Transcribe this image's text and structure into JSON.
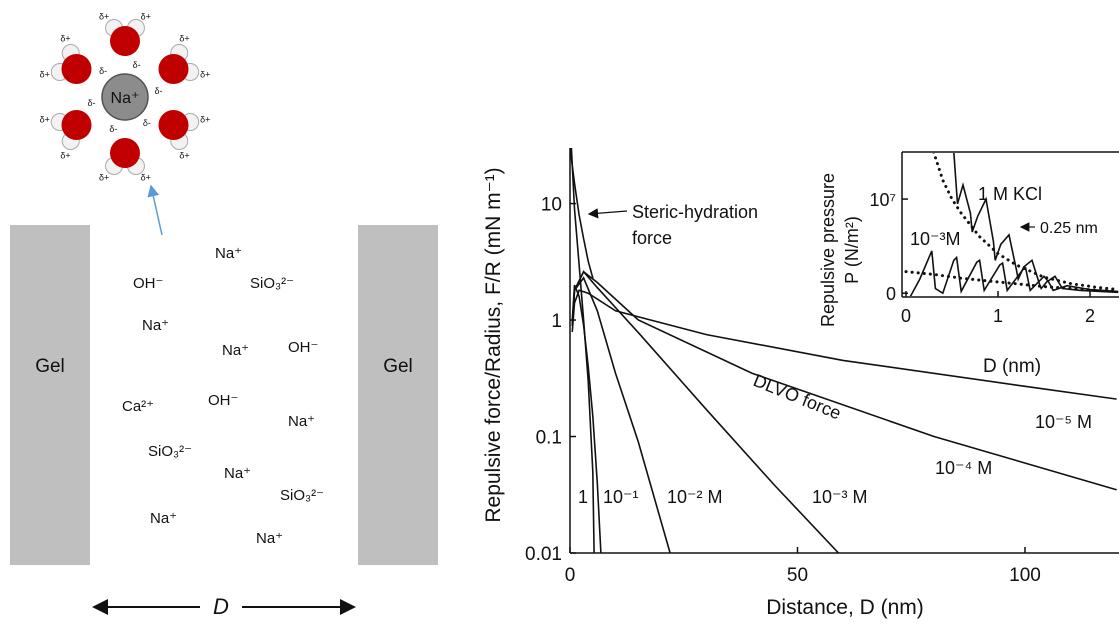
{
  "diagram": {
    "center_ion": "Na⁺",
    "deltas": [
      "δ+",
      "δ+",
      "δ-",
      "δ+",
      "δ+",
      "δ-",
      "δ+",
      "δ+",
      "δ-",
      "δ+",
      "δ+",
      "δ-",
      "δ+",
      "δ+",
      "δ-",
      "δ+",
      "δ+",
      "δ-"
    ],
    "gel_left": "Gel",
    "gel_right": "Gel",
    "ions": [
      "Na⁺",
      "OH⁻",
      "SiO₃²⁻",
      "Na⁺",
      "Na⁺",
      "OH⁻",
      "Ca²⁺",
      "OH⁻",
      "Na⁺",
      "SiO₃²⁻",
      "Na⁺",
      "SiO₃²⁻",
      "Na⁺",
      "Na⁺"
    ],
    "distance": "D"
  },
  "chart_data": [
    {
      "type": "line",
      "yscale": "log",
      "x_label": "Distance, D (nm)",
      "y_label": "Repulsive force/Radius, F/R (mN m⁻¹)",
      "xlim": [
        0,
        120
      ],
      "ylim": [
        0.01,
        30
      ],
      "xticks": [
        0,
        50,
        100
      ],
      "yticks": [
        0.01,
        0.1,
        1,
        10
      ],
      "annotations": [
        "Steric-hydration",
        "force",
        "DLVO force"
      ],
      "series": [
        {
          "name": "1",
          "color": "#111111",
          "x": [
            0.3,
            1,
            2,
            3,
            4,
            5,
            5.3
          ],
          "values": [
            30,
            9,
            3,
            1,
            0.3,
            0.05,
            0.01
          ]
        },
        {
          "name": "10⁻¹",
          "color": "#111111",
          "x": [
            0.5,
            1,
            2,
            3,
            4,
            5,
            6,
            6.8
          ],
          "values": [
            1,
            2,
            1.6,
            0.9,
            0.4,
            0.15,
            0.04,
            0.01
          ]
        },
        {
          "name": "10⁻² M",
          "color": "#111111",
          "x": [
            0.5,
            1,
            3,
            6,
            10,
            15,
            22
          ],
          "values": [
            0.9,
            1.8,
            2.3,
            1.2,
            0.35,
            0.09,
            0.01
          ]
        },
        {
          "name": "10⁻³ M",
          "color": "#111111",
          "x": [
            0.5,
            1,
            3,
            6,
            15,
            30,
            45,
            59
          ],
          "values": [
            0.9,
            1.8,
            2.6,
            1.9,
            0.78,
            0.17,
            0.038,
            0.01
          ]
        },
        {
          "name": "10⁻⁴ M",
          "color": "#111111",
          "x": [
            0.5,
            1,
            3,
            6,
            15,
            40,
            80,
            120
          ],
          "values": [
            0.9,
            1.8,
            2.6,
            2.1,
            1.0,
            0.35,
            0.1,
            0.035
          ]
        },
        {
          "name": "10⁻⁵ M",
          "color": "#111111",
          "x": [
            0.5,
            1,
            2,
            4,
            10,
            30,
            60,
            100,
            120
          ],
          "values": [
            0.8,
            1.4,
            1.8,
            1.7,
            1.2,
            0.75,
            0.45,
            0.27,
            0.21
          ]
        },
        {
          "color": "#111111",
          "x": [
            0,
            1,
            2,
            3,
            4,
            5
          ],
          "values": [
            30,
            15,
            8,
            5,
            3.2,
            2.3
          ]
        }
      ]
    },
    {
      "type": "line",
      "x_label": "D (nm)",
      "y_label": [
        "Repulsive pressure",
        "P (N/m²)"
      ],
      "xlim": [
        0,
        2.3
      ],
      "ylim": [
        -400000,
        15000000
      ],
      "xticks": [
        0,
        1,
        2
      ],
      "yticks": [
        0,
        {
          "value": 10000000,
          "label": "10⁷"
        }
      ],
      "annotations": [
        "1 M KCl",
        "10⁻³M",
        "0.25 nm"
      ],
      "series": [
        {
          "color": "#111111",
          "line_style": "solid",
          "x": [
            0.52,
            0.56,
            0.62,
            0.7,
            0.72,
            0.78,
            0.87,
            0.95,
            0.97,
            1.03,
            1.12,
            1.2,
            1.22,
            1.28,
            1.37,
            1.45,
            1.47,
            1.53,
            1.62,
            1.7,
            1.9,
            2.3
          ],
          "values": [
            15000000,
            9500000,
            11500000,
            8500000,
            6500000,
            8200000,
            10000000,
            5500000,
            3500000,
            5200000,
            6200000,
            2500000,
            1500000,
            2800000,
            3500000,
            1000000,
            500000,
            1200000,
            1800000,
            500000,
            300000,
            100000
          ]
        },
        {
          "color": "#111111",
          "line_style": "solid",
          "x": [
            0.05,
            0.15,
            0.28,
            0.32,
            0.4,
            0.52,
            0.55,
            0.6,
            0.77,
            0.8,
            0.85,
            1.02,
            1.05,
            1.1,
            1.27,
            1.3,
            1.35,
            1.5,
            1.55,
            1.6,
            1.75,
            2.0,
            2.3
          ],
          "values": [
            -300000,
            1500000,
            4500000,
            500000,
            0,
            3500000,
            3800000,
            200000,
            3300000,
            3500000,
            300000,
            3000000,
            3200000,
            300000,
            2500000,
            2700000,
            300000,
            1800000,
            1200000,
            300000,
            800000,
            400000,
            200000
          ]
        },
        {
          "color": "#111111",
          "line_style": "dotted",
          "x": [
            0.3,
            0.4,
            0.5,
            0.6,
            0.8,
            1.0,
            1.2,
            1.5,
            1.8,
            2.1,
            2.3
          ],
          "values": [
            15000000,
            12000000,
            10000000,
            8500000,
            6000000,
            4200000,
            3000000,
            1700000,
            1000000,
            600000,
            400000
          ]
        },
        {
          "color": "#111111",
          "line_style": "dotted",
          "x": [
            0,
            0.3,
            0.6,
            0.9,
            1.2,
            1.5,
            1.8,
            2.1,
            2.3
          ],
          "values": [
            2300000,
            2000000,
            1600000,
            1300000,
            1000000,
            700000,
            500000,
            300000,
            200000
          ]
        }
      ]
    }
  ]
}
